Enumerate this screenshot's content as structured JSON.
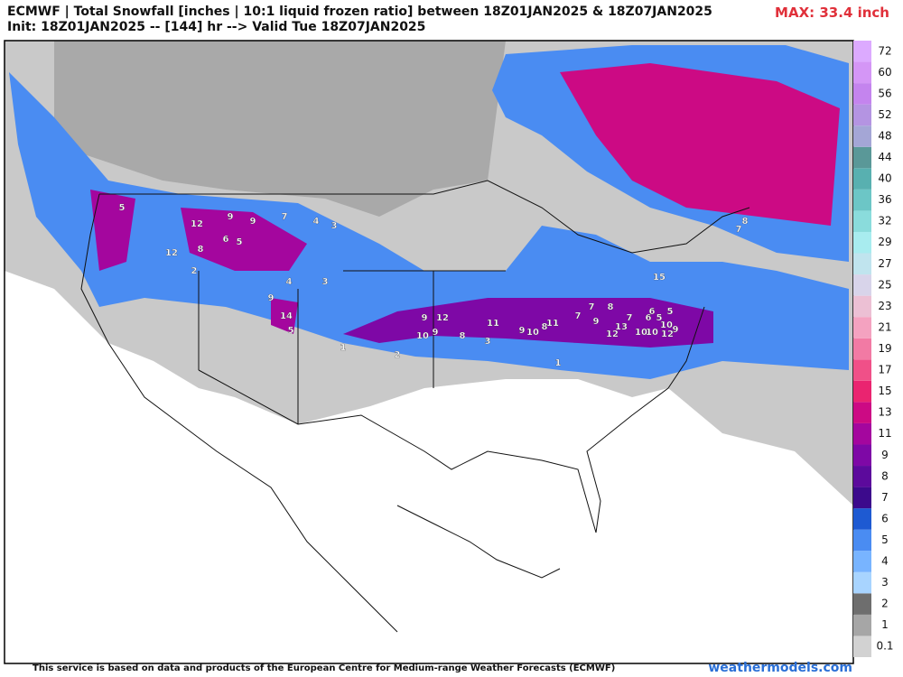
{
  "header": {
    "title": "ECMWF | Total Snowfall [inches | 10:1 liquid frozen ratio] between 18Z01JAN2025 & 18Z07JAN2025",
    "subtitle": "Init: 18Z01JAN2025 -- [144] hr --> Valid Tue 18Z07JAN2025",
    "max_label": "MAX: 33.4 inch"
  },
  "colorbar": {
    "levels": [
      0.1,
      1,
      2,
      3,
      4,
      5,
      6,
      7,
      8,
      9,
      11,
      13,
      15,
      17,
      19,
      21,
      23,
      25,
      27,
      29,
      32,
      36,
      40,
      44,
      48,
      52,
      56,
      60,
      72
    ],
    "colors": [
      "#d2d2d2",
      "#a6a6a6",
      "#6e6e6e",
      "#a8d4ff",
      "#78b4ff",
      "#4a8cf2",
      "#1e5ad2",
      "#3c0a8c",
      "#5c0a9c",
      "#7e08a6",
      "#a4069e",
      "#cc0a84",
      "#ea2470",
      "#f05088",
      "#f27aa4",
      "#f4a2c0",
      "#ecc0d4",
      "#d8d4ea",
      "#c0e4ee",
      "#a8ecef",
      "#8adcdc",
      "#6cc6c6",
      "#58b0b0",
      "#5a9898",
      "#a4a6d6",
      "#b494e2",
      "#c484ee",
      "#d496f6",
      "#dcaaff"
    ]
  },
  "map_labels": [
    "5",
    "12",
    "9",
    "9",
    "7",
    "4",
    "3",
    "12",
    "8",
    "6",
    "5",
    "2",
    "4",
    "3",
    "14",
    "5",
    "9",
    "12",
    "9",
    "8",
    "10",
    "9",
    "11",
    "9",
    "10",
    "8",
    "7",
    "9",
    "11",
    "12",
    "13",
    "10",
    "7",
    "6",
    "5",
    "10",
    "12",
    "10",
    "9",
    "7",
    "8",
    "6",
    "5",
    "15",
    "8",
    "7",
    "2",
    "1",
    "3",
    "1"
  ],
  "footer": {
    "credit": "This service is based on data and products of the European Centre for Medium-range Weather Forecasts (ECMWF)",
    "site": "weathermodels.com"
  }
}
